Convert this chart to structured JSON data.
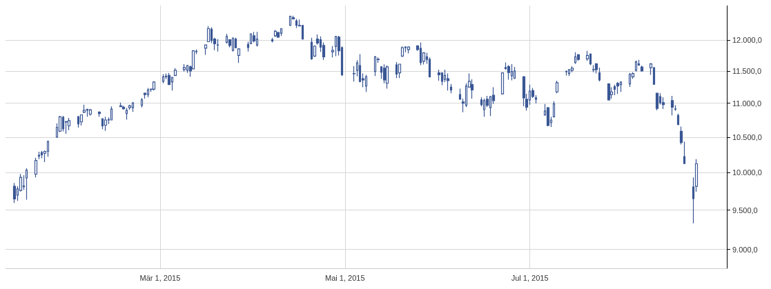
{
  "chart_data": {
    "type": "candlestick",
    "color": "#3a5795",
    "log": "y",
    "grid": true,
    "xlim": [
      "2015-01-09",
      "2015-09-04"
    ],
    "xticks": [
      {
        "value": "2015-03-01",
        "label": "Mär 1, 2015"
      },
      {
        "value": "2015-05-01",
        "label": "Mai 1, 2015"
      },
      {
        "value": "2015-07-01",
        "label": "Jul 1, 2015"
      }
    ],
    "ylim": [
      8770,
      12580
    ],
    "yticks": [
      {
        "value": 9000,
        "label": "9.000,0"
      },
      {
        "value": 9500,
        "label": "9.500,0"
      },
      {
        "value": 10000,
        "label": "10.000,0"
      },
      {
        "value": 10500,
        "label": "10.500,0"
      },
      {
        "value": 11000,
        "label": "11.000,0"
      },
      {
        "value": 11500,
        "label": "11.500,0"
      },
      {
        "value": 12000,
        "label": "12.000,0"
      }
    ],
    "x": [
      "2015-01-12",
      "2015-01-13",
      "2015-01-14",
      "2015-01-15",
      "2015-01-16",
      "2015-01-19",
      "2015-01-20",
      "2015-01-21",
      "2015-01-22",
      "2015-01-23",
      "2015-01-26",
      "2015-01-27",
      "2015-01-28",
      "2015-01-29",
      "2015-01-30",
      "2015-02-02",
      "2015-02-03",
      "2015-02-04",
      "2015-02-05",
      "2015-02-06",
      "2015-02-09",
      "2015-02-10",
      "2015-02-11",
      "2015-02-12",
      "2015-02-13",
      "2015-02-16",
      "2015-02-17",
      "2015-02-18",
      "2015-02-19",
      "2015-02-20",
      "2015-02-23",
      "2015-02-24",
      "2015-02-25",
      "2015-02-26",
      "2015-02-27",
      "2015-03-02",
      "2015-03-03",
      "2015-03-04",
      "2015-03-05",
      "2015-03-06",
      "2015-03-09",
      "2015-03-10",
      "2015-03-11",
      "2015-03-12",
      "2015-03-13",
      "2015-03-16",
      "2015-03-17",
      "2015-03-18",
      "2015-03-19",
      "2015-03-20",
      "2015-03-23",
      "2015-03-24",
      "2015-03-25",
      "2015-03-26",
      "2015-03-27",
      "2015-03-30",
      "2015-03-31",
      "2015-04-01",
      "2015-04-02",
      "2015-04-07",
      "2015-04-08",
      "2015-04-09",
      "2015-04-10",
      "2015-04-13",
      "2015-04-14",
      "2015-04-15",
      "2015-04-16",
      "2015-04-17",
      "2015-04-20",
      "2015-04-21",
      "2015-04-22",
      "2015-04-23",
      "2015-04-24",
      "2015-04-27",
      "2015-04-28",
      "2015-04-29",
      "2015-04-30",
      "2015-05-04",
      "2015-05-05",
      "2015-05-06",
      "2015-05-07",
      "2015-05-08",
      "2015-05-11",
      "2015-05-12",
      "2015-05-13",
      "2015-05-14",
      "2015-05-15",
      "2015-05-18",
      "2015-05-19",
      "2015-05-20",
      "2015-05-21",
      "2015-05-22",
      "2015-05-25",
      "2015-05-26",
      "2015-05-27",
      "2015-05-28",
      "2015-05-29",
      "2015-06-01",
      "2015-06-02",
      "2015-06-03",
      "2015-06-04",
      "2015-06-05",
      "2015-06-08",
      "2015-06-09",
      "2015-06-10",
      "2015-06-11",
      "2015-06-12",
      "2015-06-15",
      "2015-06-16",
      "2015-06-17",
      "2015-06-18",
      "2015-06-19",
      "2015-06-22",
      "2015-06-23",
      "2015-06-24",
      "2015-06-25",
      "2015-06-26",
      "2015-06-29",
      "2015-06-30",
      "2015-07-01",
      "2015-07-02",
      "2015-07-03",
      "2015-07-06",
      "2015-07-07",
      "2015-07-08",
      "2015-07-09",
      "2015-07-10",
      "2015-07-13",
      "2015-07-14",
      "2015-07-15",
      "2015-07-16",
      "2015-07-17",
      "2015-07-20",
      "2015-07-21",
      "2015-07-22",
      "2015-07-23",
      "2015-07-24",
      "2015-07-27",
      "2015-07-28",
      "2015-07-29",
      "2015-07-30",
      "2015-07-31",
      "2015-08-03",
      "2015-08-04",
      "2015-08-05",
      "2015-08-06",
      "2015-08-07",
      "2015-08-10",
      "2015-08-11",
      "2015-08-12",
      "2015-08-13",
      "2015-08-14",
      "2015-08-17",
      "2015-08-18",
      "2015-08-19",
      "2015-08-20",
      "2015-08-21",
      "2015-08-24",
      "2015-08-25"
    ],
    "ohlc": [
      [
        9815,
        9861,
        9594,
        9646
      ],
      [
        9698,
        9815,
        9620,
        9780
      ],
      [
        9759,
        9983,
        9745,
        9936
      ],
      [
        9810,
        9965,
        9768,
        9820
      ],
      [
        9928,
        10061,
        9637,
        10034
      ],
      [
        9980,
        10207,
        9936,
        10170
      ],
      [
        10243,
        10291,
        10188,
        10230
      ],
      [
        10282,
        10303,
        10203,
        10248
      ],
      [
        10270,
        10309,
        10148,
        10297
      ],
      [
        10297,
        10455,
        10221,
        10436
      ],
      [
        10500,
        10702,
        10495,
        10644
      ],
      [
        10586,
        10811,
        10573,
        10798
      ],
      [
        10789,
        10811,
        10583,
        10622
      ],
      [
        10720,
        10741,
        10548,
        10725
      ],
      [
        10664,
        10782,
        10602,
        10741
      ],
      [
        10798,
        10811,
        10640,
        10693
      ],
      [
        10722,
        10827,
        10669,
        10827
      ],
      [
        10866,
        10980,
        10852,
        10894
      ],
      [
        10894,
        10910,
        10798,
        10910
      ],
      [
        10837,
        10918,
        10814,
        10900
      ],
      [
        10866,
        10881,
        10798,
        10847
      ],
      [
        10770,
        10770,
        10616,
        10664
      ],
      [
        10674,
        10798,
        10592,
        10750
      ],
      [
        10752,
        10789,
        10693,
        10757
      ],
      [
        10750,
        10952,
        10745,
        10914
      ],
      [
        10962,
        11010,
        10942,
        10948
      ],
      [
        10942,
        10962,
        10904,
        10919
      ],
      [
        10847,
        10929,
        10756,
        10894
      ],
      [
        10933,
        10980,
        10904,
        10962
      ],
      [
        10933,
        11020,
        10871,
        11003
      ],
      [
        10971,
        11082,
        10938,
        11051
      ],
      [
        11153,
        11163,
        11071,
        11133
      ],
      [
        11133,
        11235,
        11092,
        11204
      ],
      [
        11210,
        11224,
        11173,
        11216
      ],
      [
        11214,
        11336,
        11194,
        11326
      ],
      [
        11336,
        11449,
        11306,
        11408
      ],
      [
        11418,
        11459,
        11370,
        11408
      ],
      [
        11428,
        11469,
        11280,
        11285
      ],
      [
        11326,
        11398,
        11194,
        11398
      ],
      [
        11428,
        11543,
        11418,
        11510
      ],
      [
        11521,
        11607,
        11490,
        11553
      ],
      [
        11510,
        11596,
        11469,
        11585
      ],
      [
        11564,
        11585,
        11408,
        11500
      ],
      [
        11532,
        11832,
        11527,
        11821
      ],
      [
        11808,
        11842,
        11767,
        11814
      ],
      [
        11864,
        11917,
        11756,
        11917
      ],
      [
        11970,
        12231,
        11965,
        12187
      ],
      [
        12176,
        12209,
        11948,
        11991
      ],
      [
        12013,
        12035,
        11831,
        11938
      ],
      [
        11914,
        12013,
        11809,
        11918
      ],
      [
        11959,
        12100,
        11938,
        12057
      ],
      [
        12002,
        12002,
        11877,
        11909
      ],
      [
        11831,
        12046,
        11810,
        12024
      ],
      [
        12013,
        12035,
        11862,
        11873
      ],
      [
        11747,
        11862,
        11627,
        11852
      ],
      [
        11927,
        11970,
        11809,
        11874
      ],
      [
        11938,
        12102,
        11935,
        12100
      ],
      [
        12067,
        12132,
        11959,
        11981
      ],
      [
        11914,
        12132,
        11891,
        12013
      ],
      [
        12002,
        12035,
        11959,
        11981
      ],
      [
        12067,
        12165,
        12046,
        12143
      ],
      [
        12122,
        12132,
        12035,
        12046
      ],
      [
        12111,
        12187,
        12067,
        12187
      ],
      [
        12242,
        12406,
        12231,
        12395
      ],
      [
        12373,
        12406,
        12340,
        12351
      ],
      [
        12318,
        12351,
        12198,
        12242
      ],
      [
        12242,
        12340,
        12225,
        12231
      ],
      [
        12242,
        12245,
        12010,
        12013
      ],
      [
        11959,
        12035,
        11676,
        11694
      ],
      [
        11735,
        11909,
        11724,
        11899
      ],
      [
        12013,
        12089,
        11923,
        11948
      ],
      [
        12002,
        12057,
        11805,
        11882
      ],
      [
        11909,
        11959,
        11673,
        11724
      ],
      [
        11806,
        11898,
        11714,
        11827
      ],
      [
        11893,
        12067,
        11735,
        12057
      ],
      [
        12046,
        12067,
        11745,
        11821
      ],
      [
        11873,
        11895,
        11418,
        11439
      ],
      [
        11455,
        11578,
        11332,
        11458
      ],
      [
        11510,
        11671,
        11415,
        11628
      ],
      [
        11585,
        11768,
        11323,
        11333
      ],
      [
        11377,
        11459,
        11245,
        11357
      ],
      [
        11265,
        11439,
        11173,
        11408
      ],
      [
        11490,
        11736,
        11418,
        11725
      ],
      [
        11681,
        11714,
        11628,
        11685
      ],
      [
        11564,
        11575,
        11377,
        11480
      ],
      [
        11542,
        11605,
        11306,
        11357
      ],
      [
        11306,
        11585,
        11224,
        11564
      ],
      [
        11596,
        11639,
        11388,
        11449
      ],
      [
        11469,
        11607,
        11388,
        11607
      ],
      [
        11735,
        11895,
        11724,
        11874
      ],
      [
        11884,
        11895,
        11799,
        11874
      ],
      [
        11842,
        11895,
        11778,
        11884
      ],
      [
        11905,
        11905,
        11821,
        11842
      ],
      [
        11862,
        11959,
        11590,
        11633
      ],
      [
        11653,
        11799,
        11602,
        11789
      ],
      [
        11725,
        11789,
        11612,
        11684
      ],
      [
        11684,
        11714,
        11398,
        11408
      ],
      [
        11469,
        11520,
        11347,
        11439
      ],
      [
        11469,
        11469,
        11276,
        11337
      ],
      [
        11367,
        11520,
        11326,
        11428
      ],
      [
        11377,
        11459,
        11194,
        11347
      ],
      [
        11245,
        11296,
        11153,
        11204
      ],
      [
        11133,
        11224,
        11058,
        11061
      ],
      [
        11020,
        11071,
        10866,
        11000
      ],
      [
        10971,
        11306,
        10942,
        11265
      ],
      [
        11245,
        11459,
        11240,
        11337
      ],
      [
        11286,
        11367,
        11071,
        11204
      ],
      [
        11051,
        11092,
        10952,
        10981
      ],
      [
        10904,
        11071,
        10798,
        11041
      ],
      [
        11061,
        11112,
        10942,
        10971
      ],
      [
        10933,
        11112,
        10808,
        11102
      ],
      [
        11122,
        11245,
        10990,
        11041
      ],
      [
        11143,
        11480,
        11133,
        11469
      ],
      [
        11555,
        11635,
        11516,
        11538
      ],
      [
        11571,
        11592,
        11363,
        11475
      ],
      [
        11424,
        11607,
        11353,
        11490
      ],
      [
        11384,
        11564,
        11373,
        11500
      ],
      [
        11408,
        11418,
        10956,
        11082
      ],
      [
        11061,
        11143,
        10890,
        10942
      ],
      [
        11051,
        11286,
        10977,
        11184
      ],
      [
        11194,
        11235,
        11082,
        11102
      ],
      [
        11082,
        11122,
        10996,
        11061
      ],
      [
        10823,
        10990,
        10823,
        10885
      ],
      [
        10933,
        10942,
        10660,
        10670
      ],
      [
        10712,
        10798,
        10650,
        10750
      ],
      [
        10798,
        11031,
        10789,
        10990
      ],
      [
        11173,
        11347,
        11153,
        11316
      ],
      [
        11488,
        11510,
        11428,
        11492
      ],
      [
        11459,
        11521,
        11418,
        11521
      ],
      [
        11510,
        11575,
        11480,
        11543
      ],
      [
        11633,
        11799,
        11612,
        11725
      ],
      [
        11757,
        11768,
        11660,
        11682
      ],
      [
        11692,
        11821,
        11660,
        11746
      ],
      [
        11768,
        11778,
        11590,
        11612
      ],
      [
        11518,
        11590,
        11480,
        11522
      ],
      [
        11612,
        11623,
        11459,
        11520
      ],
      [
        11469,
        11551,
        11336,
        11357
      ],
      [
        11296,
        11306,
        11041,
        11051
      ],
      [
        11133,
        11245,
        11071,
        11173
      ],
      [
        11255,
        11286,
        11122,
        11214
      ],
      [
        11306,
        11326,
        11143,
        11265
      ],
      [
        11286,
        11336,
        11173,
        11326
      ],
      [
        11296,
        11469,
        11250,
        11449
      ],
      [
        11408,
        11480,
        11377,
        11459
      ],
      [
        11510,
        11666,
        11490,
        11644
      ],
      [
        11612,
        11676,
        11583,
        11592
      ],
      [
        11561,
        11582,
        11490,
        11500
      ],
      [
        11551,
        11623,
        11439,
        11612
      ],
      [
        11551,
        11561,
        11282,
        11292
      ],
      [
        11153,
        11153,
        10894,
        10923
      ],
      [
        11102,
        11153,
        10981,
        11010
      ],
      [
        11010,
        11092,
        10914,
        10981
      ],
      [
        11041,
        11112,
        10818,
        10942
      ],
      [
        10912,
        10971,
        10885,
        10916
      ],
      [
        10817,
        10846,
        10680,
        10683
      ],
      [
        10586,
        10654,
        10395,
        10423
      ],
      [
        10224,
        10436,
        10122,
        10125
      ],
      [
        9806,
        9936,
        9330,
        9650
      ],
      [
        9815,
        10188,
        9742,
        10125
      ]
    ]
  }
}
